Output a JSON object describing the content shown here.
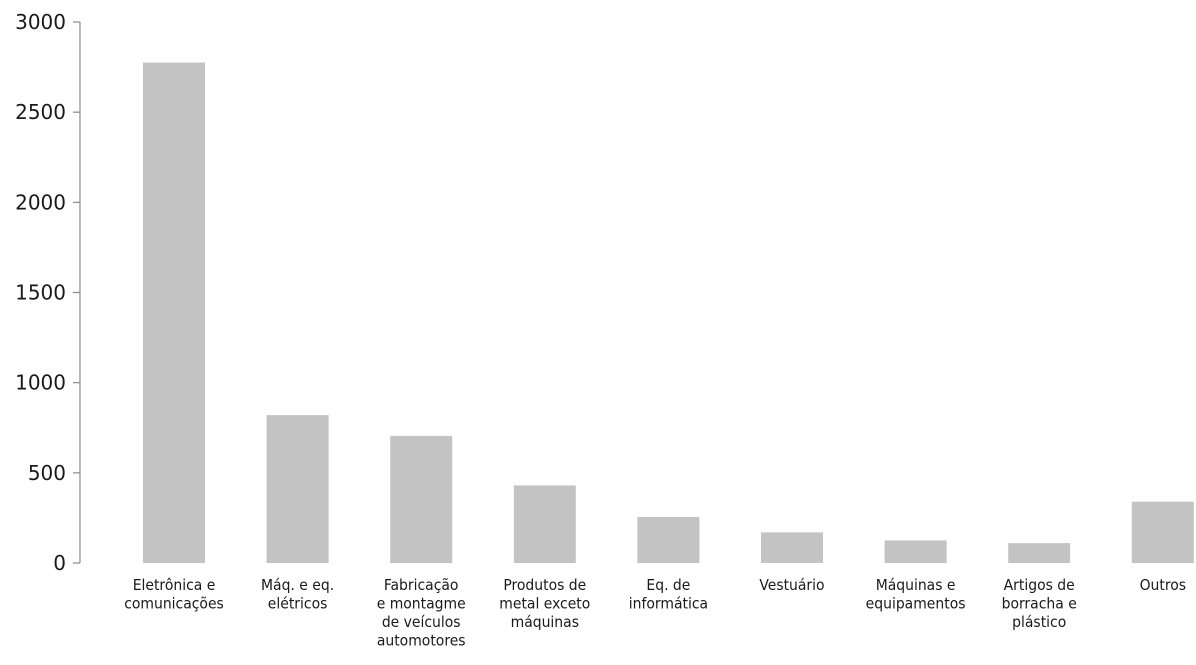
{
  "chart_data": {
    "type": "bar",
    "title": "",
    "xlabel": "",
    "ylabel": "",
    "ylim": [
      0,
      3000
    ],
    "yticks": [
      0,
      500,
      1000,
      1500,
      2000,
      2500,
      3000
    ],
    "grid": false,
    "legend": "none",
    "bar_color": "#c3c3c3",
    "axis_color": "#8a8a8a",
    "categories": [
      [
        "Eletrônica e",
        "comunicações"
      ],
      [
        "Máq. e eq.",
        "elétricos"
      ],
      [
        "Fabricação",
        "e montagme",
        "de veículos",
        "automotores"
      ],
      [
        "Produtos de",
        "metal exceto",
        "máquinas"
      ],
      [
        "Eq. de",
        "informática"
      ],
      [
        "Vestuário"
      ],
      [
        "Máquinas e",
        "equipamentos"
      ],
      [
        "Artigos de",
        "borracha e",
        "plástico"
      ],
      [
        "Outros"
      ]
    ],
    "values": [
      2775,
      820,
      705,
      430,
      255,
      170,
      125,
      110,
      340
    ]
  }
}
